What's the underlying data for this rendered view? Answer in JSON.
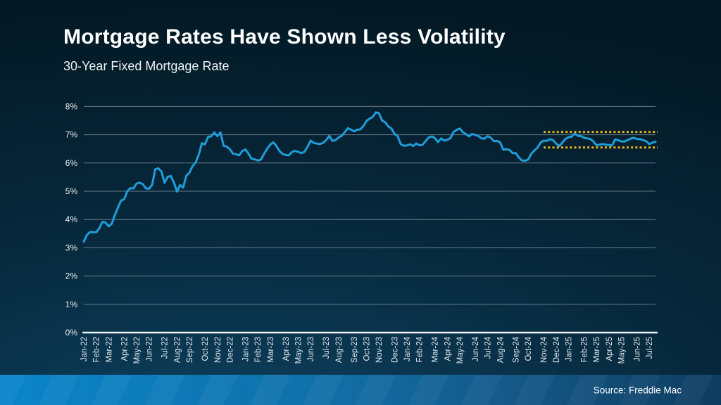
{
  "chart_data": {
    "type": "line",
    "title": "Mortgage Rates Have Shown Less Volatility",
    "subtitle": "30-Year Fixed Mortgage Rate",
    "source": "Source: Freddie Mac",
    "xlabel": "",
    "ylabel": "",
    "ylim": [
      0,
      8
    ],
    "grid": true,
    "legend": "none",
    "y_tick_labels": [
      "0%",
      "1%",
      "2%",
      "3%",
      "4%",
      "5%",
      "6%",
      "7%",
      "8%"
    ],
    "x_tick_labels": [
      "Jan-22",
      "Feb-22",
      "Mar-22",
      "Apr-22",
      "May-22",
      "Jun-22",
      "Jul-22",
      "Aug-22",
      "Sep-22",
      "Oct-22",
      "Nov-22",
      "Dec-22",
      "Jan-23",
      "Feb-23",
      "Mar-23",
      "Apr-23",
      "May-23",
      "Jun-23",
      "Jul-23",
      "Aug-23",
      "Sep-23",
      "Oct-23",
      "Nov-23",
      "Dec-23",
      "Jan-24",
      "Feb-24",
      "Mar-24",
      "Apr-24",
      "May-24",
      "Jun-24",
      "Jul-24",
      "Aug-24",
      "Sep-24",
      "Oct-24",
      "Nov-24",
      "Dec-24",
      "Jan-25",
      "Feb-25",
      "Mar-25",
      "Apr-25",
      "May-25",
      "Jun-25",
      "Jul-25"
    ],
    "weeks_per_month": [
      4,
      4,
      5,
      4,
      4,
      5,
      4,
      4,
      5,
      4,
      4,
      5,
      4,
      4,
      5,
      4,
      4,
      5,
      4,
      5,
      4,
      4,
      5,
      4,
      4,
      5,
      4,
      4,
      5,
      4,
      4,
      5,
      4,
      5,
      4,
      4,
      5,
      4,
      4,
      4,
      5,
      4,
      3
    ],
    "series": [
      {
        "name": "30-Year Fixed Mortgage Rate (weekly, %)",
        "color": "#1f9dd9",
        "values": [
          3.22,
          3.45,
          3.56,
          3.55,
          3.55,
          3.69,
          3.92,
          3.89,
          3.76,
          3.85,
          4.16,
          4.42,
          4.67,
          4.72,
          5.0,
          5.11,
          5.1,
          5.27,
          5.3,
          5.25,
          5.1,
          5.09,
          5.23,
          5.78,
          5.81,
          5.7,
          5.3,
          5.51,
          5.54,
          5.3,
          4.99,
          5.22,
          5.13,
          5.55,
          5.66,
          5.89,
          6.02,
          6.29,
          6.7,
          6.66,
          6.92,
          6.94,
          7.08,
          6.95,
          7.08,
          6.61,
          6.58,
          6.49,
          6.33,
          6.31,
          6.27,
          6.42,
          6.48,
          6.33,
          6.15,
          6.13,
          6.09,
          6.12,
          6.32,
          6.5,
          6.65,
          6.73,
          6.6,
          6.42,
          6.32,
          6.28,
          6.27,
          6.39,
          6.43,
          6.39,
          6.35,
          6.39,
          6.57,
          6.79,
          6.71,
          6.69,
          6.67,
          6.71,
          6.81,
          6.96,
          6.78,
          6.81,
          6.9,
          6.96,
          7.09,
          7.23,
          7.18,
          7.12,
          7.18,
          7.19,
          7.31,
          7.49,
          7.57,
          7.63,
          7.79,
          7.76,
          7.5,
          7.44,
          7.29,
          7.22,
          7.03,
          6.95,
          6.67,
          6.61,
          6.62,
          6.66,
          6.6,
          6.69,
          6.63,
          6.64,
          6.77,
          6.9,
          6.94,
          6.88,
          6.74,
          6.87,
          6.79,
          6.82,
          6.88,
          7.1,
          7.17,
          7.22,
          7.09,
          7.02,
          6.94,
          7.03,
          6.99,
          6.95,
          6.87,
          6.86,
          6.95,
          6.89,
          6.77,
          6.78,
          6.73,
          6.47,
          6.49,
          6.46,
          6.35,
          6.35,
          6.2,
          6.09,
          6.08,
          6.12,
          6.32,
          6.44,
          6.54,
          6.72,
          6.79,
          6.78,
          6.84,
          6.81,
          6.69,
          6.6,
          6.72,
          6.85,
          6.91,
          6.93,
          7.04,
          6.96,
          6.95,
          6.89,
          6.87,
          6.85,
          6.76,
          6.63,
          6.65,
          6.67,
          6.65,
          6.64,
          6.62,
          6.83,
          6.81,
          6.76,
          6.76,
          6.81,
          6.86,
          6.89,
          6.85,
          6.84,
          6.81,
          6.77,
          6.67,
          6.72,
          6.75
        ]
      }
    ],
    "annotations": [
      {
        "type": "hline",
        "value": 7.1,
        "from_month": "Nov-24",
        "from_month_index": 34,
        "to_month": "Jul-25",
        "style": "dotted",
        "color": "#e6b41f",
        "meaning": "upper bound of recent trading range"
      },
      {
        "type": "hline",
        "value": 6.55,
        "from_month": "Nov-24",
        "from_month_index": 34,
        "to_month": "Jul-25",
        "style": "dotted",
        "color": "#e6b41f",
        "meaning": "lower bound of recent trading range"
      }
    ]
  },
  "colors": {
    "background_top": "#031823",
    "background_glow": "#0e4160",
    "line": "#1f9dd9",
    "gridline": "rgba(198,209,216,0.5)",
    "axis_baseline": "#eef3f5",
    "annotation_dotted": "#e6b41f",
    "footer_gradient_left": "#0a85ca",
    "footer_gradient_right": "#0e3c5f",
    "text": "#ffffff"
  }
}
